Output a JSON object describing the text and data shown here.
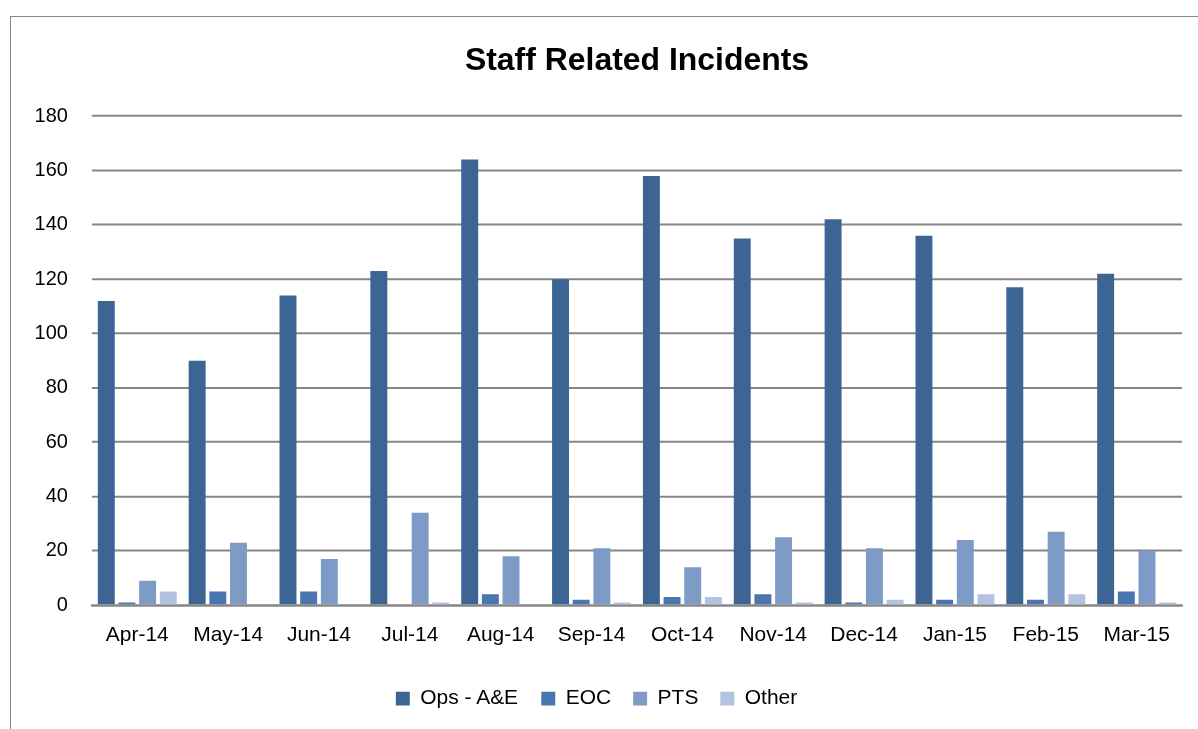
{
  "chart_data": {
    "type": "bar",
    "title": "Staff Related Incidents",
    "categories": [
      "Apr-14",
      "May-14",
      "Jun-14",
      "Jul-14",
      "Aug-14",
      "Sep-14",
      "Oct-14",
      "Nov-14",
      "Dec-14",
      "Jan-15",
      "Feb-15",
      "Mar-15"
    ],
    "series": [
      {
        "name": "Ops - A&E",
        "color": "#3d6594",
        "values": [
          112,
          90,
          114,
          123,
          164,
          120,
          158,
          135,
          142,
          136,
          117,
          122
        ]
      },
      {
        "name": "EOC",
        "color": "#4a76b0",
        "values": [
          1,
          5,
          5,
          0,
          4,
          2,
          3,
          4,
          1,
          2,
          2,
          5
        ]
      },
      {
        "name": "PTS",
        "color": "#7e9bc8",
        "values": [
          9,
          23,
          17,
          34,
          18,
          21,
          14,
          25,
          21,
          24,
          27,
          20
        ]
      },
      {
        "name": "Other",
        "color": "#b3c3df",
        "values": [
          5,
          0,
          0,
          1,
          0,
          1,
          3,
          1,
          2,
          4,
          4,
          1
        ]
      }
    ],
    "ylim": [
      0,
      180
    ],
    "yticks": [
      0,
      20,
      40,
      60,
      80,
      100,
      120,
      140,
      160,
      180
    ],
    "grid": "y",
    "legend": "bottom"
  }
}
